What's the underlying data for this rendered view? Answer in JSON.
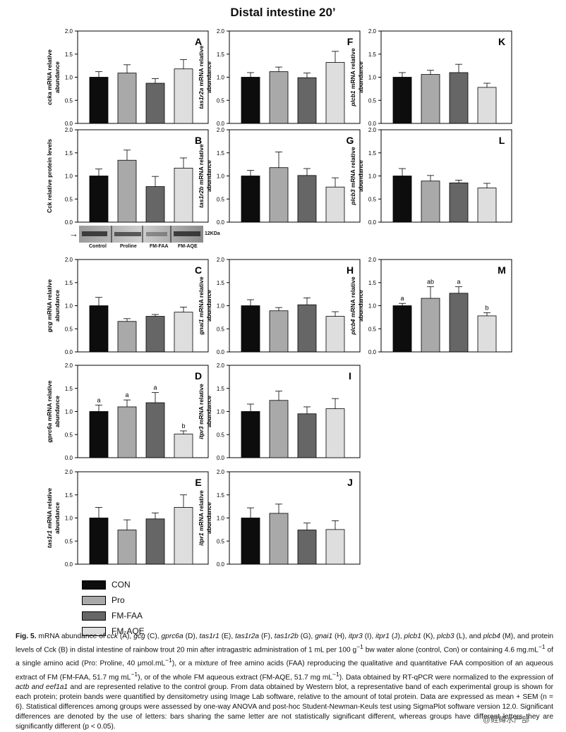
{
  "figure_title": "Distal intestine 20’",
  "groups": [
    "CON",
    "Pro",
    "FM-FAA",
    "FM-AQE"
  ],
  "colors": [
    "#0d0d0d",
    "#a9a9a9",
    "#666666",
    "#dedede"
  ],
  "yticks": [
    "0.0",
    "0.5",
    "1.0",
    "1.5",
    "2.0"
  ],
  "chart_data": [
    {
      "type": "bar",
      "letter": "A",
      "ylabel": [
        "cck",
        "a mRNA relative",
        "abundance"
      ],
      "categories": [
        "CON",
        "Pro",
        "FM-FAA",
        "FM-AQE"
      ],
      "values": [
        1.0,
        1.09,
        0.87,
        1.18
      ],
      "errors": [
        0.12,
        0.18,
        0.1,
        0.2
      ],
      "sig": null,
      "ylim": [
        0,
        2
      ]
    },
    {
      "type": "bar",
      "letter": "B",
      "ylabel": [
        "",
        "Cck relative protein levels",
        ""
      ],
      "categories": [
        "CON",
        "Pro",
        "FM-FAA",
        "FM-AQE"
      ],
      "values": [
        1.0,
        1.34,
        0.77,
        1.17
      ],
      "errors": [
        0.15,
        0.22,
        0.22,
        0.22
      ],
      "sig": null,
      "ylim": [
        0,
        2
      ]
    },
    {
      "type": "bar",
      "letter": "C",
      "ylabel": [
        "gcg",
        "  mRNA relative",
        "abundance"
      ],
      "categories": [
        "CON",
        "Pro",
        "FM-FAA",
        "FM-AQE"
      ],
      "values": [
        1.0,
        0.66,
        0.77,
        0.86
      ],
      "errors": [
        0.18,
        0.06,
        0.04,
        0.11
      ],
      "sig": null,
      "ylim": [
        0,
        2
      ]
    },
    {
      "type": "bar",
      "letter": "D",
      "ylabel": [
        "gprc6a",
        "  mRNA relative",
        "abundance"
      ],
      "categories": [
        "CON",
        "Pro",
        "FM-FAA",
        "FM-AQE"
      ],
      "values": [
        1.0,
        1.1,
        1.19,
        0.51
      ],
      "errors": [
        0.14,
        0.15,
        0.22,
        0.07
      ],
      "sig": [
        "a",
        "a",
        "a",
        "b"
      ],
      "ylim": [
        0,
        2
      ]
    },
    {
      "type": "bar",
      "letter": "E",
      "ylabel": [
        "tas1r1",
        "  mRNA relative",
        "abundance"
      ],
      "categories": [
        "CON",
        "Pro",
        "FM-FAA",
        "FM-AQE"
      ],
      "values": [
        1.0,
        0.74,
        0.98,
        1.23
      ],
      "errors": [
        0.23,
        0.22,
        0.13,
        0.27
      ],
      "sig": null,
      "ylim": [
        0,
        2
      ]
    },
    {
      "type": "bar",
      "letter": "F",
      "ylabel": [
        "tas1r2a",
        "  mRNA relative",
        "abundance"
      ],
      "categories": [
        "CON",
        "Pro",
        "FM-FAA",
        "FM-AQE"
      ],
      "values": [
        1.0,
        1.12,
        0.99,
        1.32
      ],
      "errors": [
        0.1,
        0.1,
        0.1,
        0.24
      ],
      "sig": null,
      "ylim": [
        0,
        2
      ]
    },
    {
      "type": "bar",
      "letter": "G",
      "ylabel": [
        "tas1r2b",
        "  mRNA relative",
        "abundance"
      ],
      "categories": [
        "CON",
        "Pro",
        "FM-FAA",
        "FM-AQE"
      ],
      "values": [
        1.0,
        1.18,
        1.01,
        0.76
      ],
      "errors": [
        0.12,
        0.34,
        0.15,
        0.2
      ],
      "sig": null,
      "ylim": [
        0,
        2
      ]
    },
    {
      "type": "bar",
      "letter": "H",
      "ylabel": [
        "gnai1",
        "  mRNA relative",
        "abundance"
      ],
      "categories": [
        "CON",
        "Pro",
        "FM-FAA",
        "FM-AQE"
      ],
      "values": [
        1.0,
        0.89,
        1.02,
        0.77
      ],
      "errors": [
        0.13,
        0.07,
        0.15,
        0.1
      ],
      "sig": null,
      "ylim": [
        0,
        2
      ]
    },
    {
      "type": "bar",
      "letter": "I",
      "ylabel": [
        "itpr3",
        "  mRNA relative",
        "abundance"
      ],
      "categories": [
        "CON",
        "Pro",
        "FM-FAA",
        "FM-AQE"
      ],
      "values": [
        1.0,
        1.24,
        0.95,
        1.06
      ],
      "errors": [
        0.16,
        0.2,
        0.15,
        0.22
      ],
      "sig": null,
      "ylim": [
        0,
        2
      ]
    },
    {
      "type": "bar",
      "letter": "J",
      "ylabel": [
        "itpr1",
        "  mRNA relative",
        "abundance"
      ],
      "categories": [
        "CON",
        "Pro",
        "FM-FAA",
        "FM-AQE"
      ],
      "values": [
        1.0,
        1.1,
        0.74,
        0.75
      ],
      "errors": [
        0.22,
        0.2,
        0.15,
        0.19
      ],
      "sig": null,
      "ylim": [
        0,
        2
      ]
    },
    {
      "type": "bar",
      "letter": "K",
      "ylabel": [
        "plcb1",
        "  mRNA relative",
        "abundance"
      ],
      "categories": [
        "CON",
        "Pro",
        "FM-FAA",
        "FM-AQE"
      ],
      "values": [
        1.0,
        1.06,
        1.1,
        0.78
      ],
      "errors": [
        0.1,
        0.09,
        0.18,
        0.09
      ],
      "sig": null,
      "ylim": [
        0,
        2
      ]
    },
    {
      "type": "bar",
      "letter": "L",
      "ylabel": [
        "plcb3",
        "  mRNA relative",
        "abundance"
      ],
      "categories": [
        "CON",
        "Pro",
        "FM-FAA",
        "FM-AQE"
      ],
      "values": [
        1.0,
        0.89,
        0.85,
        0.74
      ],
      "errors": [
        0.16,
        0.12,
        0.06,
        0.1
      ],
      "sig": null,
      "ylim": [
        0,
        2
      ]
    },
    {
      "type": "bar",
      "letter": "M",
      "ylabel": [
        "plcb4",
        "  mRNA relative",
        "abundance"
      ],
      "categories": [
        "CON",
        "Pro",
        "FM-FAA",
        "FM-AQE"
      ],
      "values": [
        1.0,
        1.16,
        1.27,
        0.78
      ],
      "errors": [
        0.05,
        0.25,
        0.14,
        0.07
      ],
      "sig": [
        "a",
        "ab",
        "a",
        "b"
      ],
      "ylim": [
        0,
        2
      ]
    }
  ],
  "blot": {
    "arrow": "→",
    "kda": "12KDa",
    "lanes": [
      "Control",
      "Proline",
      "FM-FAA",
      "FM-AQE"
    ]
  },
  "legend": [
    "CON",
    "Pro",
    "FM-FAA",
    "FM-AQE"
  ],
  "caption": [
    {
      "t": "Fig. 5.",
      "b": true
    },
    {
      "t": " mRNA abundance of "
    },
    {
      "t": "cck",
      "i": true
    },
    {
      "t": " (A), "
    },
    {
      "t": "gcg",
      "i": true
    },
    {
      "t": " (C), "
    },
    {
      "t": "gprc6a",
      "i": true
    },
    {
      "t": " (D), "
    },
    {
      "t": "tas1r1",
      "i": true
    },
    {
      "t": " (E), "
    },
    {
      "t": "tas1r2a",
      "i": true
    },
    {
      "t": " (F), "
    },
    {
      "t": "tas1r2b",
      "i": true
    },
    {
      "t": " (G), "
    },
    {
      "t": "gnai1",
      "i": true
    },
    {
      "t": " (H), "
    },
    {
      "t": "itpr3",
      "i": true
    },
    {
      "t": " (I), "
    },
    {
      "t": "itpr1",
      "i": true
    },
    {
      "t": " (J), "
    },
    {
      "t": "plcb1",
      "i": true
    },
    {
      "t": " (K), "
    },
    {
      "t": "plcb3",
      "i": true
    },
    {
      "t": " (L), and "
    },
    {
      "t": "plcb4",
      "i": true
    },
    {
      "t": " (M), and protein levels of Cck (B) in distal intestine of rainbow trout 20 min after intragastric administration of 1 mL per 100 g"
    },
    {
      "t": "−1",
      "sup": true
    },
    {
      "t": " bw water alone (control, Con) or containing 4.6 mg.mL"
    },
    {
      "t": "−1",
      "sup": true
    },
    {
      "t": " of a single amino acid (Pro: Proline, 40 μmol.mL"
    },
    {
      "t": "−1",
      "sup": true
    },
    {
      "t": "), or a mixture of free amino acids (FAA) reproducing the qualitative and quantitative FAA composition of an aqueous extract of FM (FM-FAA, 51.7 mg mL"
    },
    {
      "t": "−1",
      "sup": true
    },
    {
      "t": "), or of the whole FM aqueous extract (FM-AQE, 51.7 mg mL"
    },
    {
      "t": "−1",
      "sup": true
    },
    {
      "t": "). Data obtained by RT-qPCR were normalized to the expression of "
    },
    {
      "t": "actb and eef1a1",
      "i": true
    },
    {
      "t": " and are represented relative to the control group. From data obtained by Western blot, a representative band of each experimental group is shown for each protein; protein bands were quantified by densitometry using Image Lab software, relative to the amount of total protein. Data are expressed as mean + SEM (n = 6). Statistical differences among groups were assessed by one-way ANOVA and post-hoc Student-Newman-Keuls test using SigmaPlot software version 12.0. Significant differences are denoted by the use of letters: bars sharing the same letter are not statistically significant different, whereas groups have different letters they are significantly different (p < 0.05)."
    }
  ],
  "watermark": "@鲑鳟水产部"
}
